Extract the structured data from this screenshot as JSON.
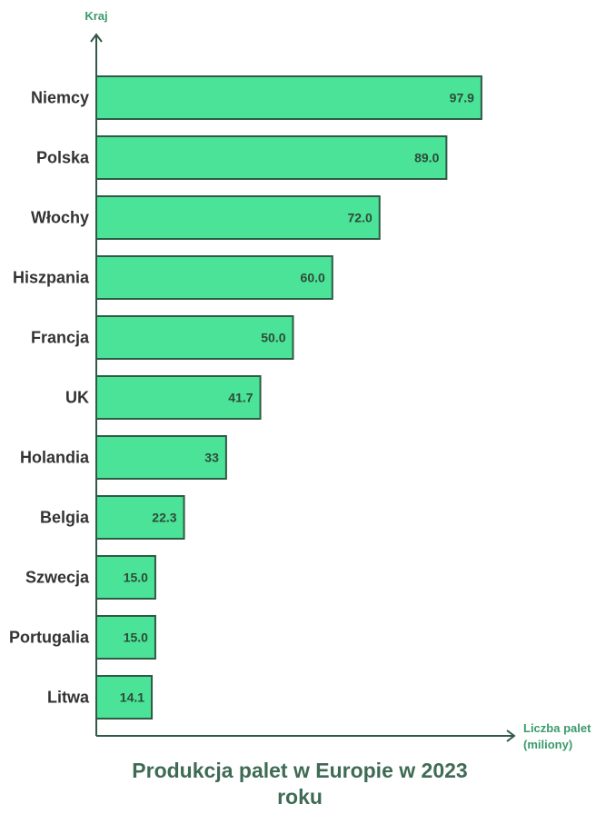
{
  "chart_data": {
    "type": "bar",
    "orientation": "horizontal",
    "title": "Produkcja palet w Europie w 2023 roku",
    "xlabel_line1": "Liczba palet",
    "xlabel_line2": "(miliony)",
    "ylabel": "Kraj",
    "categories": [
      "Niemcy",
      "Polska",
      "Włochy",
      "Hiszpania",
      "Francja",
      "UK",
      "Holandia",
      "Belgia",
      "Szwecja",
      "Portugalia",
      "Litwa"
    ],
    "values": [
      97.9,
      89.0,
      72.0,
      60.0,
      50.0,
      41.7,
      33,
      22.3,
      15.0,
      15.0,
      14.1
    ],
    "value_labels": [
      "97.9",
      "89.0",
      "72.0",
      "60.0",
      "50.0",
      "41.7",
      "33",
      "22.3",
      "15.0",
      "15.0",
      "14.1"
    ],
    "xlim": [
      0,
      100
    ],
    "grid": false,
    "legend": "none",
    "colors": {
      "bar_fill": "#4ae397",
      "bar_stroke": "#2f5a45",
      "axis": "#2f5a45",
      "axis_label": "#3a9a6a",
      "title": "#3f6b55"
    }
  }
}
